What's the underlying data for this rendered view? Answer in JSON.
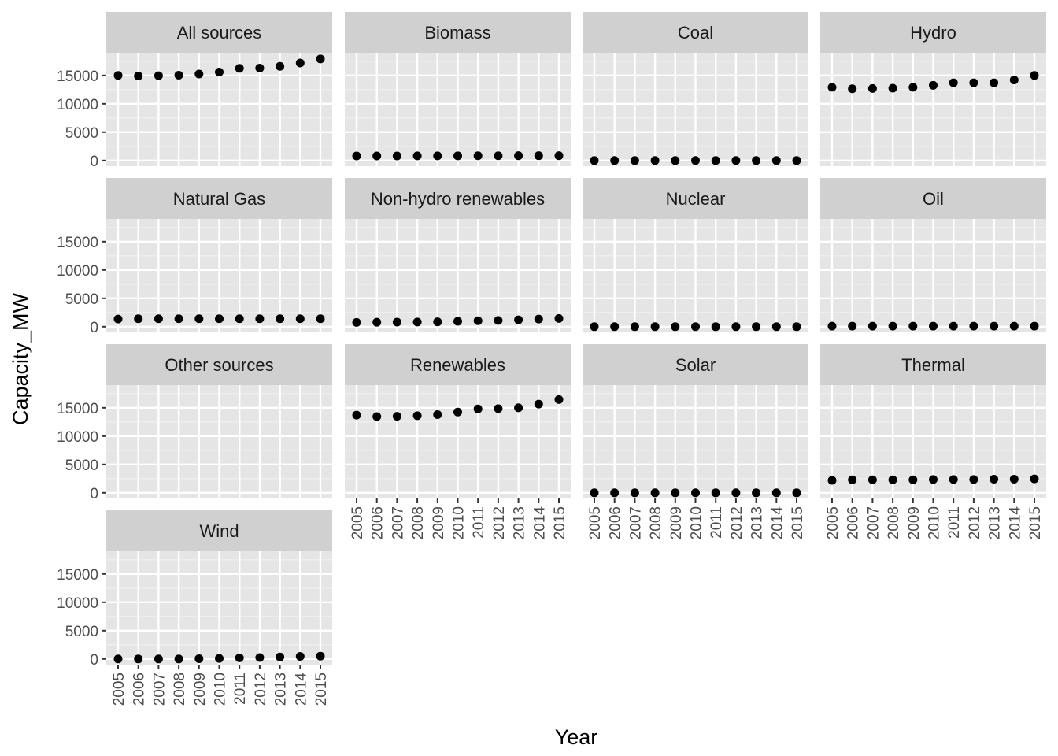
{
  "chart_data": {
    "type": "scatter",
    "layout": "facet-wrap",
    "xlabel": "Year",
    "ylabel": "Capacity_MW",
    "x": [
      2005,
      2006,
      2007,
      2008,
      2009,
      2010,
      2011,
      2012,
      2013,
      2014,
      2015
    ],
    "x_tick_labels": [
      "2005",
      "2006",
      "2007",
      "2008",
      "2009",
      "2010",
      "2011",
      "2012",
      "2013",
      "2014",
      "2015"
    ],
    "y_ticks": [
      0,
      5000,
      10000,
      15000
    ],
    "y_tick_labels": [
      "0",
      "5000",
      "10000",
      "15000"
    ],
    "ylim": [
      -1000,
      19000
    ],
    "grid": true,
    "point_color": "#000000",
    "panel_background": "#e5e5e5",
    "strip_background": "#d0d0d0",
    "panels": [
      {
        "title": "All sources",
        "values": [
          15000,
          14900,
          14950,
          15050,
          15250,
          15600,
          16250,
          16300,
          16600,
          17200,
          17900
        ]
      },
      {
        "title": "Biomass",
        "values": [
          800,
          800,
          800,
          820,
          820,
          830,
          840,
          840,
          850,
          850,
          850
        ]
      },
      {
        "title": "Coal",
        "values": [
          0,
          0,
          0,
          0,
          0,
          0,
          0,
          0,
          0,
          0,
          0
        ]
      },
      {
        "title": "Hydro",
        "values": [
          12900,
          12650,
          12700,
          12750,
          12900,
          13250,
          13700,
          13700,
          13700,
          14200,
          15000
        ]
      },
      {
        "title": "Natural Gas",
        "values": [
          1350,
          1400,
          1400,
          1400,
          1400,
          1400,
          1400,
          1400,
          1400,
          1400,
          1400
        ]
      },
      {
        "title": "Non-hydro renewables",
        "values": [
          750,
          780,
          800,
          820,
          850,
          950,
          1050,
          1100,
          1200,
          1350,
          1450
        ]
      },
      {
        "title": "Nuclear",
        "values": [
          0,
          0,
          0,
          0,
          0,
          0,
          0,
          0,
          0,
          0,
          0
        ]
      },
      {
        "title": "Oil",
        "values": [
          100,
          100,
          100,
          100,
          100,
          100,
          100,
          100,
          100,
          100,
          100
        ]
      },
      {
        "title": "Other sources",
        "values": []
      },
      {
        "title": "Renewables",
        "values": [
          13700,
          13450,
          13500,
          13600,
          13800,
          14250,
          14800,
          14850,
          15000,
          15650,
          16450
        ]
      },
      {
        "title": "Solar",
        "values": [
          0,
          0,
          0,
          0,
          0,
          0,
          0,
          0,
          0,
          0,
          0
        ]
      },
      {
        "title": "Thermal",
        "values": [
          2200,
          2300,
          2300,
          2300,
          2300,
          2350,
          2350,
          2350,
          2400,
          2400,
          2450
        ]
      },
      {
        "title": "Wind",
        "values": [
          0,
          0,
          0,
          0,
          50,
          100,
          200,
          250,
          350,
          450,
          500
        ]
      }
    ]
  }
}
